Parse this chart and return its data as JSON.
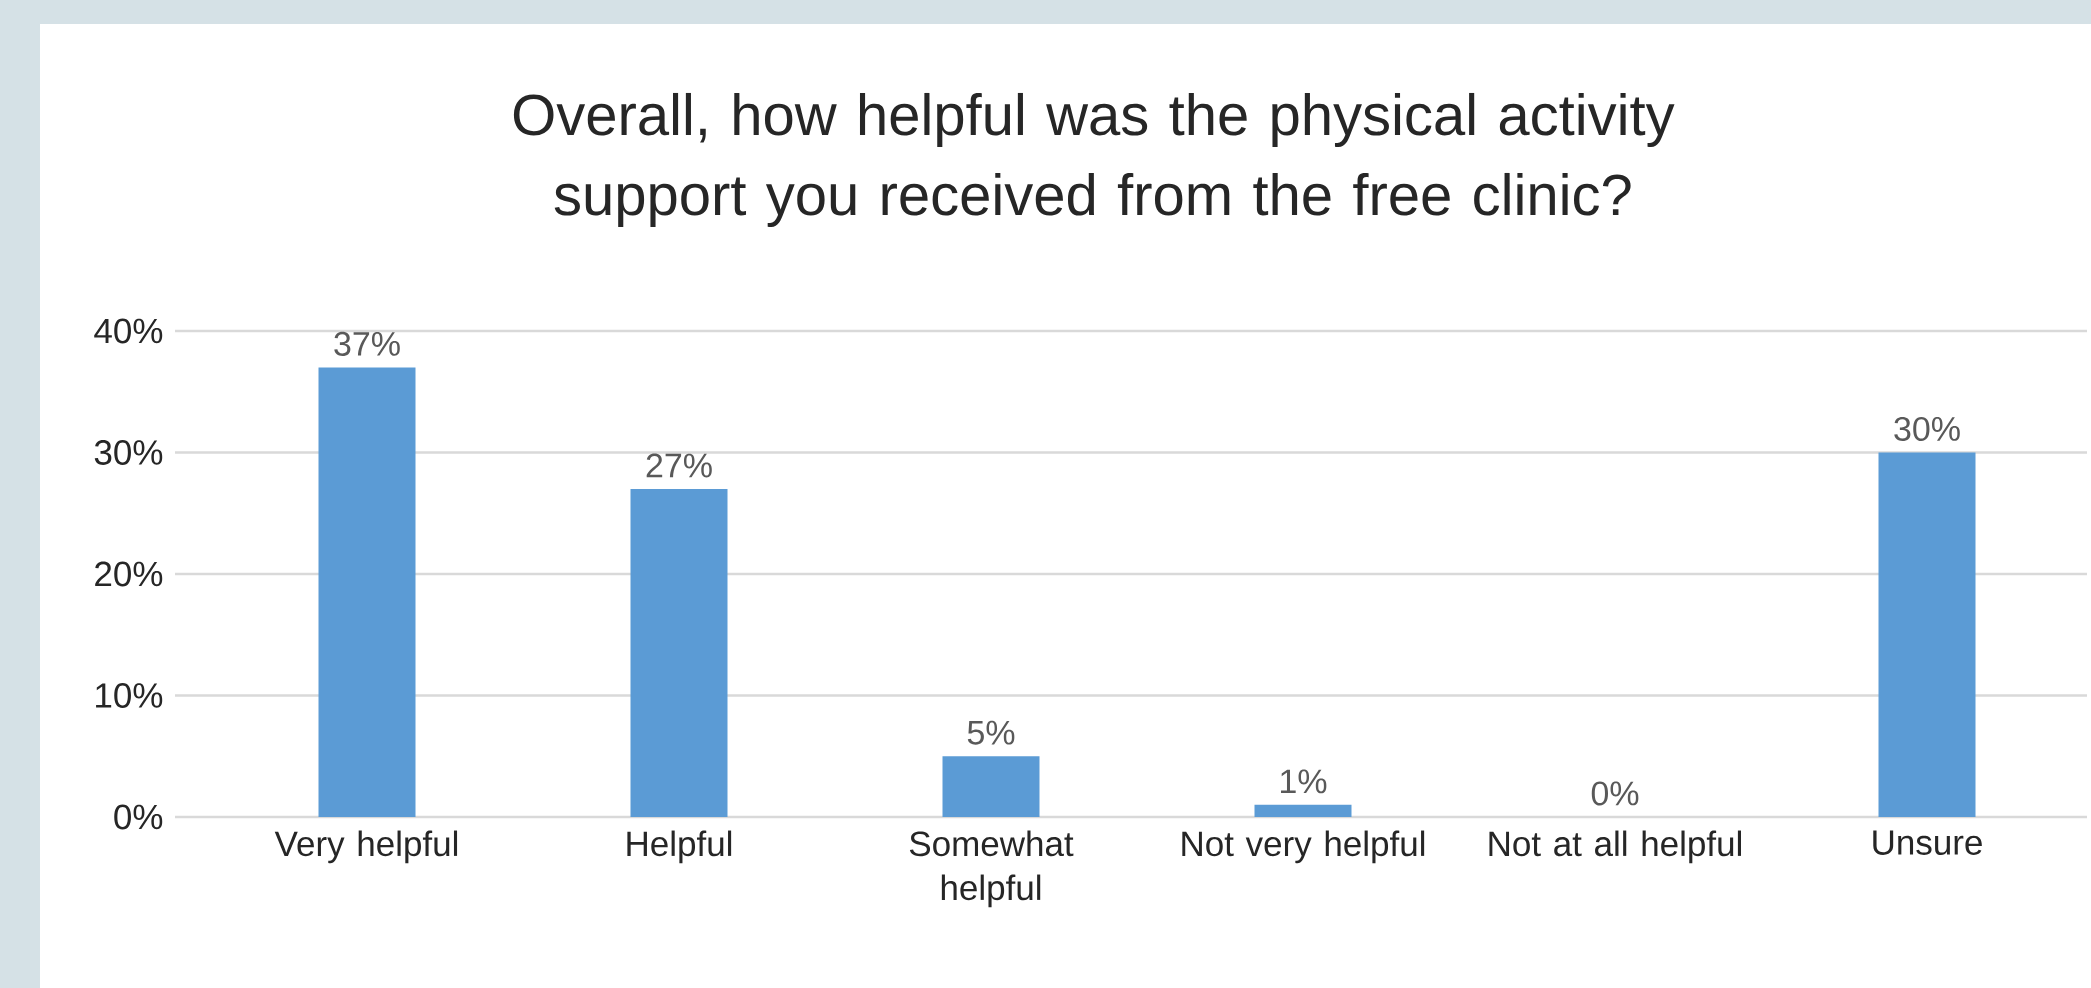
{
  "chart_data": {
    "type": "bar",
    "title": "Overall, how helpful was the physical activity support you received from the free clinic?",
    "categories": [
      "Very helpful",
      "Helpful",
      "Somewhat helpful",
      "Not very helpful",
      "Not at all helpful",
      "Unsure"
    ],
    "values": [
      37,
      27,
      5,
      1,
      0,
      30
    ],
    "value_labels": [
      "37%",
      "27%",
      "5%",
      "1%",
      "0%",
      "30%"
    ],
    "color": "#5b9bd5",
    "ylim": [
      0,
      40
    ],
    "yticks": [
      {
        "value": 0,
        "label": "0%"
      },
      {
        "value": 10,
        "label": "10%"
      },
      {
        "value": 20,
        "label": "20%"
      },
      {
        "value": 30,
        "label": "30%"
      },
      {
        "value": 40,
        "label": "40%"
      }
    ],
    "grid": "y"
  }
}
